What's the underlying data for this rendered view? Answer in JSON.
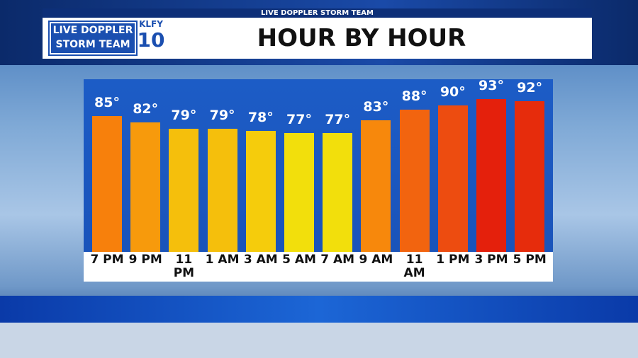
{
  "header": {
    "strip": "LIVE DOPPLER STORM TEAM",
    "logo_line1": "LIVE DOPPLER",
    "logo_line2": "STORM TEAM",
    "station": "KLFY",
    "channel": "10"
  },
  "chart_data": {
    "type": "bar",
    "title": "HOUR BY HOUR",
    "categories": [
      "7 PM",
      "9 PM",
      "11 PM",
      "1 AM",
      "3 AM",
      "5 AM",
      "7 AM",
      "9 AM",
      "11 AM",
      "1 PM",
      "3 PM",
      "5 PM"
    ],
    "values": [
      85,
      82,
      79,
      79,
      78,
      77,
      77,
      83,
      88,
      90,
      93,
      92
    ],
    "value_labels": [
      "85°",
      "82°",
      "79°",
      "79°",
      "78°",
      "77°",
      "77°",
      "83°",
      "88°",
      "90°",
      "93°",
      "92°"
    ],
    "colors": [
      "#f7800c",
      "#f79a0c",
      "#f5bf0c",
      "#f5bf0c",
      "#f5cc0c",
      "#f2df0c",
      "#f2df0c",
      "#f7880c",
      "#f2640f",
      "#ed4c10",
      "#e4200c",
      "#e62c0c"
    ],
    "ylim": [
      21,
      100
    ]
  }
}
